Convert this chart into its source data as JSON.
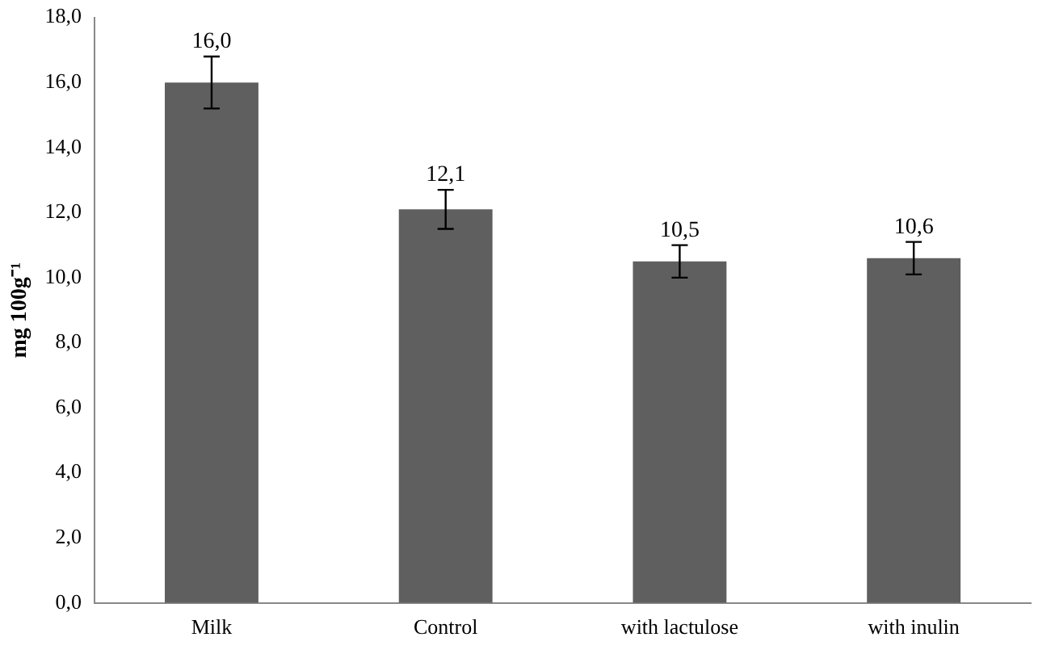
{
  "chart_data": {
    "type": "bar",
    "ylabel": "mg 100g⁻¹",
    "categories": [
      "Milk",
      "Control",
      "with lactulose",
      "with inulin"
    ],
    "values": [
      16.0,
      12.1,
      10.5,
      10.6
    ],
    "color": "#5f5f5f",
    "errors": [
      0.8,
      0.6,
      0.5,
      0.5
    ],
    "value_labels": [
      "16,0",
      "12,1",
      "10,5",
      "10,6"
    ],
    "ylim": [
      0,
      18
    ],
    "yticks": [
      {
        "value": 0,
        "label": "0,0"
      },
      {
        "value": 2,
        "label": "2,0"
      },
      {
        "value": 4,
        "label": "4,0"
      },
      {
        "value": 6,
        "label": "6,0"
      },
      {
        "value": 8,
        "label": "8,0"
      },
      {
        "value": 10,
        "label": "10,0"
      },
      {
        "value": 12,
        "label": "12,0"
      },
      {
        "value": 14,
        "label": "14,0"
      },
      {
        "value": 16,
        "label": "16,0"
      },
      {
        "value": 18,
        "label": "18,0"
      }
    ],
    "grid": false,
    "legend": false
  }
}
